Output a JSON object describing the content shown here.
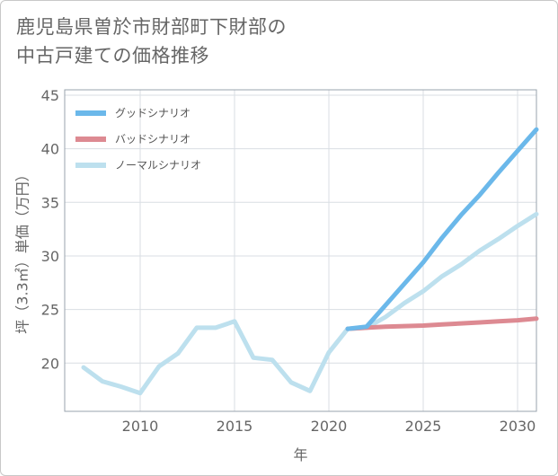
{
  "chart_data": {
    "type": "line",
    "title_lines": [
      "鹿児島県曽於市財部町下財部の",
      "中古戸建ての価格推移"
    ],
    "xlabel": "年",
    "ylabel": "坪（3.3㎡）単価（万円）",
    "xlim": [
      2006,
      2031
    ],
    "ylim": [
      15.5,
      45.5
    ],
    "xticks": [
      2010,
      2015,
      2020,
      2025,
      2030
    ],
    "yticks": [
      20,
      25,
      30,
      35,
      40,
      45
    ],
    "grid": true,
    "legend_position": "top-left",
    "series": [
      {
        "name": "グッドシナリオ",
        "color": "#6bb8ea",
        "x": [
          2021,
          2022,
          2023,
          2024,
          2025,
          2026,
          2027,
          2028,
          2029,
          2030,
          2031
        ],
        "y": [
          23.2,
          23.4,
          25.4,
          27.4,
          29.4,
          31.7,
          33.8,
          35.7,
          37.8,
          39.8,
          41.8
        ]
      },
      {
        "name": "バッドシナリオ",
        "color": "#dd8a92",
        "x": [
          2021,
          2022,
          2023,
          2024,
          2025,
          2026,
          2027,
          2028,
          2029,
          2030,
          2031
        ],
        "y": [
          23.2,
          23.3,
          23.4,
          23.45,
          23.5,
          23.6,
          23.7,
          23.8,
          23.9,
          24.0,
          24.15
        ]
      },
      {
        "name": "ノーマルシナリオ",
        "color": "#bde0ee",
        "x": [
          2007,
          2008,
          2009,
          2010,
          2011,
          2012,
          2013,
          2014,
          2015,
          2016,
          2017,
          2018,
          2019,
          2020,
          2021,
          2022,
          2023,
          2024,
          2025,
          2026,
          2027,
          2028,
          2029,
          2030,
          2031
        ],
        "y": [
          19.6,
          18.3,
          17.8,
          17.2,
          19.7,
          20.9,
          23.3,
          23.3,
          23.9,
          20.5,
          20.3,
          18.2,
          17.4,
          21.0,
          23.2,
          23.3,
          24.3,
          25.6,
          26.7,
          28.1,
          29.2,
          30.5,
          31.6,
          32.8,
          33.9
        ]
      }
    ]
  }
}
